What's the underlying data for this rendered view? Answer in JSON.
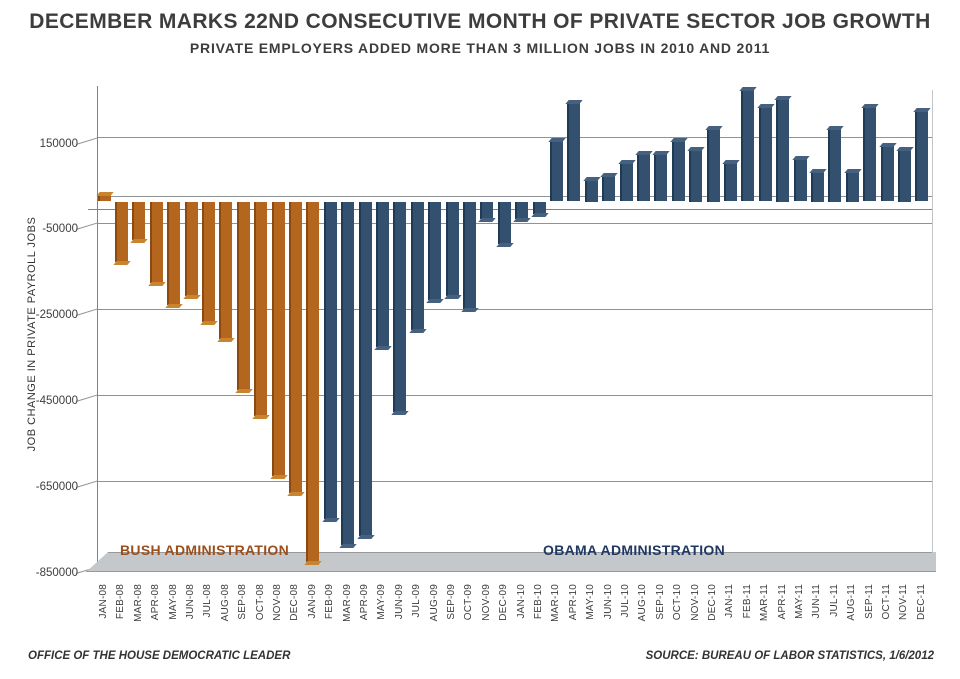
{
  "title": "DECEMBER MARKS 22ND CONSECUTIVE MONTH OF PRIVATE SECTOR JOB GROWTH",
  "subtitle": "PRIVATE EMPLOYERS ADDED MORE THAN 3 MILLION JOBS IN 2010 AND 2011",
  "y_axis_title": "JOB CHANGE IN PRIVATE PAYROLL JOBS",
  "annotations": {
    "bush_label": "BUSH ADMINISTRATION",
    "obama_label": "OBAMA ADMINISTRATION"
  },
  "footer_left": "OFFICE OF THE HOUSE DEMOCRATIC LEADER",
  "footer_right": "SOURCE: BUREAU OF LABOR STATISTICS, 1/6/2012",
  "colors": {
    "bush_bar": "#b4651e",
    "bush_bar_dark": "#8a4a12",
    "bush_bar_cap": "#c8842f",
    "bush_text": "#9c4f1a",
    "obama_bar": "#33506f",
    "obama_bar_dark": "#1e3a55",
    "obama_bar_cap": "#46617f",
    "obama_text": "#1f3864",
    "gridline": "#8f9296",
    "floor": "#c5c8cb",
    "text": "#3d3d3d"
  },
  "chart_data": {
    "type": "bar",
    "title": "DECEMBER MARKS 22ND CONSECUTIVE MONTH OF PRIVATE SECTOR JOB GROWTH",
    "subtitle": "PRIVATE EMPLOYERS ADDED MORE THAN 3 MILLION JOBS IN 2010 AND 2011",
    "xlabel": "",
    "ylabel": "JOB CHANGE IN PRIVATE PAYROLL JOBS",
    "ylim": [
      -850000,
      280000
    ],
    "yticks": [
      150000,
      -50000,
      -250000,
      -450000,
      -650000,
      -850000
    ],
    "grid": true,
    "legend_position": "none",
    "categories": [
      "JAN-08",
      "FEB-08",
      "MAR-08",
      "APR-08",
      "MAY-08",
      "JUN-08",
      "JUL-08",
      "AUG-08",
      "SEP-08",
      "OCT-08",
      "NOV-08",
      "DEC-08",
      "JAN-09",
      "FEB-09",
      "MAR-09",
      "APR-09",
      "MAY-09",
      "JUN-09",
      "JUL-09",
      "AUG-09",
      "SEP-09",
      "OCT-09",
      "NOV-09",
      "DEC-09",
      "JAN-10",
      "FEB-10",
      "MAR-10",
      "APR-10",
      "MAY-10",
      "JUN-10",
      "JUL-10",
      "AUG-10",
      "SEP-10",
      "OCT-10",
      "NOV-10",
      "DEC-10",
      "JAN-11",
      "FEB-11",
      "MAR-11",
      "APR-11",
      "MAY-11",
      "JUN-11",
      "JUL-11",
      "AUG-11",
      "SEP-11",
      "OCT-11",
      "NOV-11",
      "DEC-11"
    ],
    "values": [
      15000,
      -140000,
      -90000,
      -190000,
      -240000,
      -220000,
      -280000,
      -320000,
      -440000,
      -500000,
      -640000,
      -680000,
      -840000,
      -740000,
      -800000,
      -780000,
      -340000,
      -490000,
      -300000,
      -230000,
      -220000,
      -250000,
      -40000,
      -100000,
      -40000,
      -30000,
      140000,
      230000,
      50000,
      60000,
      90000,
      110000,
      110000,
      140000,
      120000,
      170000,
      90000,
      260000,
      220000,
      240000,
      100000,
      70000,
      170000,
      70000,
      220000,
      130000,
      120000,
      210000
    ],
    "series_groups": [
      {
        "name": "BUSH ADMINISTRATION",
        "from_index": 0,
        "to_index": 12
      },
      {
        "name": "OBAMA ADMINISTRATION",
        "from_index": 13,
        "to_index": 47
      }
    ]
  }
}
